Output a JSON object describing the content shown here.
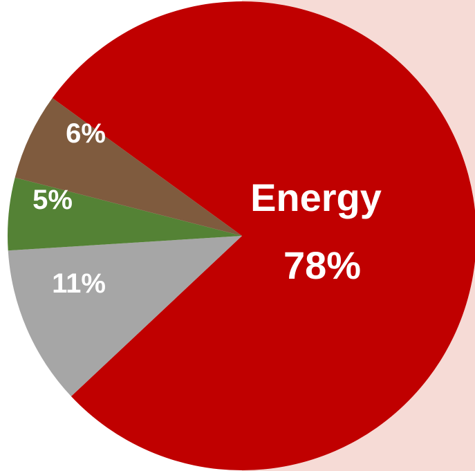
{
  "chart_data": {
    "type": "pie",
    "slices": [
      {
        "label": "Energy",
        "value": 78,
        "display": "78%",
        "color": "#c00000"
      },
      {
        "label": "",
        "value": 11,
        "display": "11%",
        "color": "#a6a6a6"
      },
      {
        "label": "",
        "value": 5,
        "display": "5%",
        "color": "#548235"
      },
      {
        "label": "",
        "value": 6,
        "display": "6%",
        "color": "#7f5b3e"
      }
    ],
    "title": "",
    "legend": "none"
  },
  "colors": {
    "background_right": "#f6dbd6",
    "label_text": "#ffffff"
  }
}
